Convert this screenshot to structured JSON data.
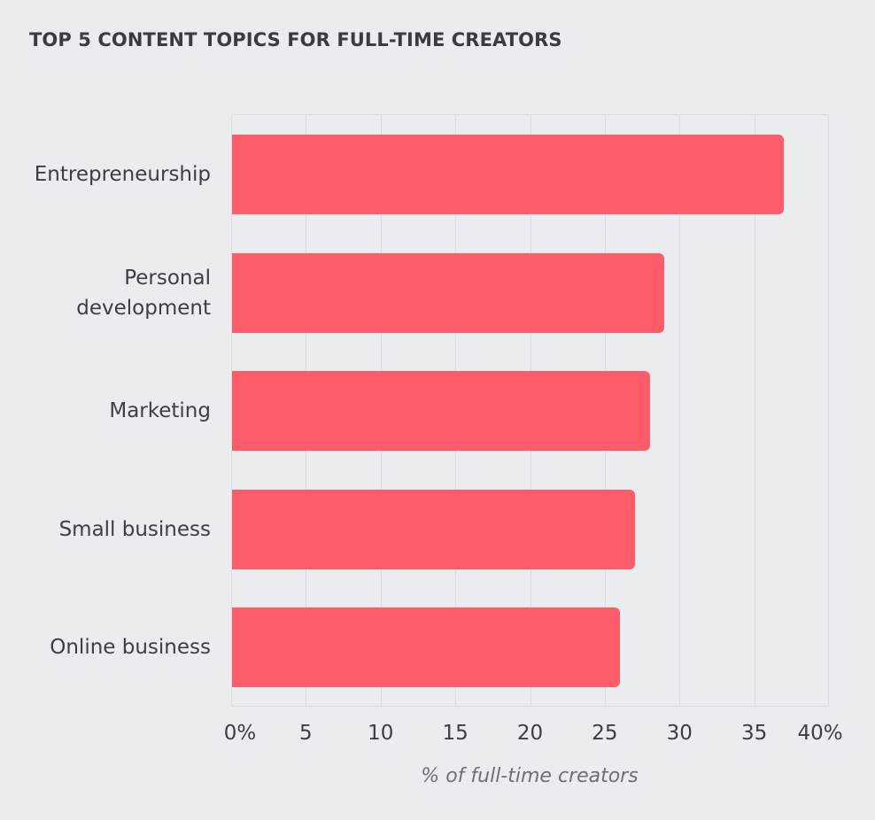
{
  "chart_data": {
    "type": "bar",
    "orientation": "horizontal",
    "title": "TOP 5 CONTENT TOPICS FOR FULL-TIME CREATORS",
    "categories": [
      "Entrepreneurship",
      "Personal development",
      "Marketing",
      "Small business",
      "Online business"
    ],
    "category_labels": [
      [
        "Entrepreneurship"
      ],
      [
        "Personal",
        "development"
      ],
      [
        "Marketing"
      ],
      [
        "Small business"
      ],
      [
        "Online business"
      ]
    ],
    "values": [
      37,
      29,
      28,
      27,
      26
    ],
    "xlabel": "% of full-time creators",
    "ylabel": "",
    "xlim": [
      0,
      40
    ],
    "xticks": [
      "0%",
      "5",
      "10",
      "15",
      "20",
      "25",
      "30",
      "35",
      "40%"
    ],
    "grid": true,
    "legend": null,
    "bar_color": "#fd5c6a"
  },
  "colors": {
    "background": "#ebecf0",
    "bar": "#fd5c6a",
    "grid": "#dcdde2",
    "text": "#3b3e44"
  }
}
